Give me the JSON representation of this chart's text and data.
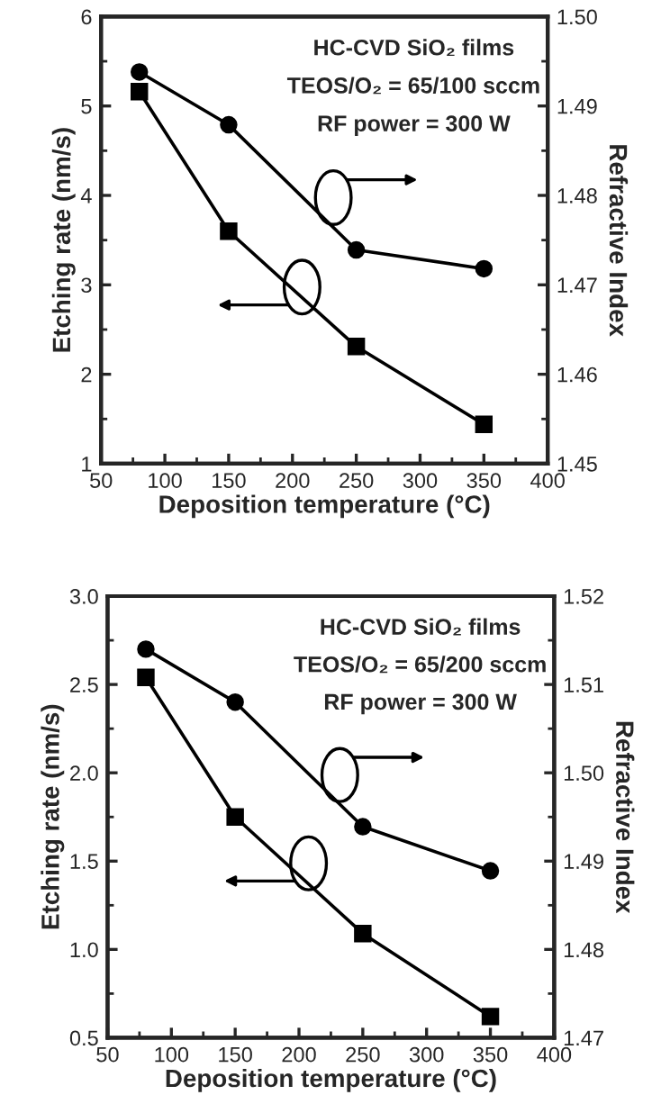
{
  "chart_data": [
    {
      "type": "line",
      "xlabel": "Deposition temperature (°C)",
      "ylabel": "Etching rate (nm/s)",
      "y2label": "Refractive Index",
      "x": [
        80,
        150,
        250,
        350
      ],
      "xlim": [
        50,
        400
      ],
      "xticks": [
        50,
        100,
        150,
        200,
        250,
        300,
        350,
        400
      ],
      "ylim": [
        1,
        6
      ],
      "yticks": [
        1,
        2,
        3,
        4,
        5,
        6
      ],
      "y2lim": [
        1.45,
        1.5
      ],
      "y2ticks": [
        1.45,
        1.46,
        1.47,
        1.48,
        1.49,
        {
          "value": 1.5,
          "label": "1.50"
        }
      ],
      "series": [
        {
          "color": "#000000",
          "marker": "square",
          "axis": "y",
          "values": [
            5.16,
            3.6,
            2.31,
            1.44
          ]
        },
        {
          "color": "#000000",
          "marker": "circle",
          "axis": "y2",
          "values": [
            1.4938,
            1.4879,
            1.4739,
            1.4718
          ]
        }
      ],
      "annotations": [
        "HC-CVD SiO₂ films",
        "TEOS/O₂ = 65/100 sccm",
        "RF power = 300 W"
      ],
      "grid": false,
      "line_style": "solid"
    },
    {
      "type": "line",
      "xlabel": "Deposition temperature (°C)",
      "ylabel": "Etching rate (nm/s)",
      "y2label": "Refractive Index",
      "x": [
        80,
        150,
        250,
        350
      ],
      "xlim": [
        50,
        400
      ],
      "xticks": [
        50,
        100,
        150,
        200,
        250,
        300,
        350,
        400
      ],
      "ylim": [
        0.5,
        3.0
      ],
      "yticks": [
        0.5,
        {
          "value": 1,
          "label": "1.0"
        },
        1.5,
        {
          "value": 2,
          "label": "2.0"
        },
        2.5,
        {
          "value": 3,
          "label": "3.0"
        }
      ],
      "y2lim": [
        1.47,
        1.52
      ],
      "y2ticks": [
        1.47,
        1.48,
        1.49,
        {
          "value": 1.5,
          "label": "1.50"
        },
        1.51,
        1.52
      ],
      "series": [
        {
          "color": "#000000",
          "marker": "square",
          "axis": "y",
          "values": [
            2.54,
            1.75,
            1.09,
            0.62
          ]
        },
        {
          "color": "#000000",
          "marker": "circle",
          "axis": "y2",
          "values": [
            1.514,
            1.508,
            1.4939,
            1.4889
          ]
        }
      ],
      "annotations": [
        "HC-CVD SiO₂ films",
        "TEOS/O₂ = 65/200 sccm",
        "RF power = 300 W"
      ],
      "grid": false,
      "line_style": "solid"
    }
  ]
}
